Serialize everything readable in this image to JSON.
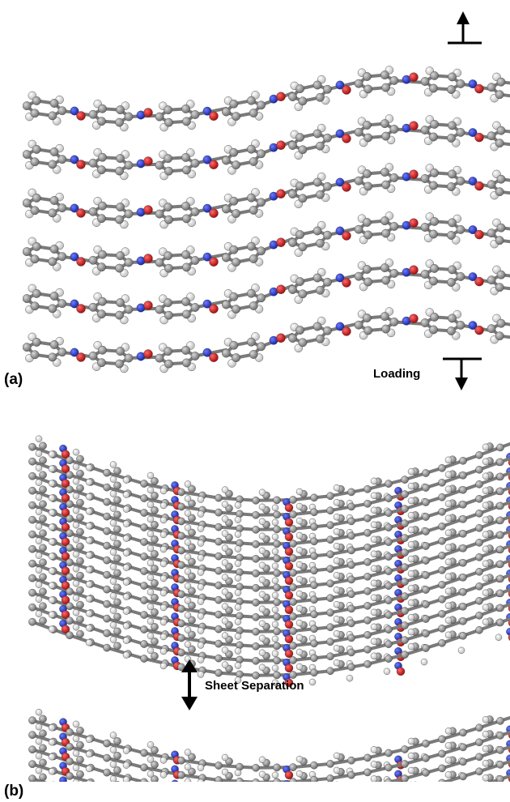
{
  "panels": [
    {
      "label": "(a)"
    },
    {
      "label": "(b)"
    }
  ],
  "annotations": {
    "loading": "Loading",
    "sheet_separation": "Sheet Separation"
  },
  "colors": {
    "carbon": "#8a8a8a",
    "carbon_highlight": "#c8c8c8",
    "hydrogen": "#f4f4f4",
    "nitrogen": "#2c3fd6",
    "oxygen": "#d81e1e",
    "arrow": "#000000"
  },
  "icons": [
    "up-arrow-with-bar-icon",
    "down-arrow-with-bar-icon",
    "double-headed-arrow-icon"
  ]
}
